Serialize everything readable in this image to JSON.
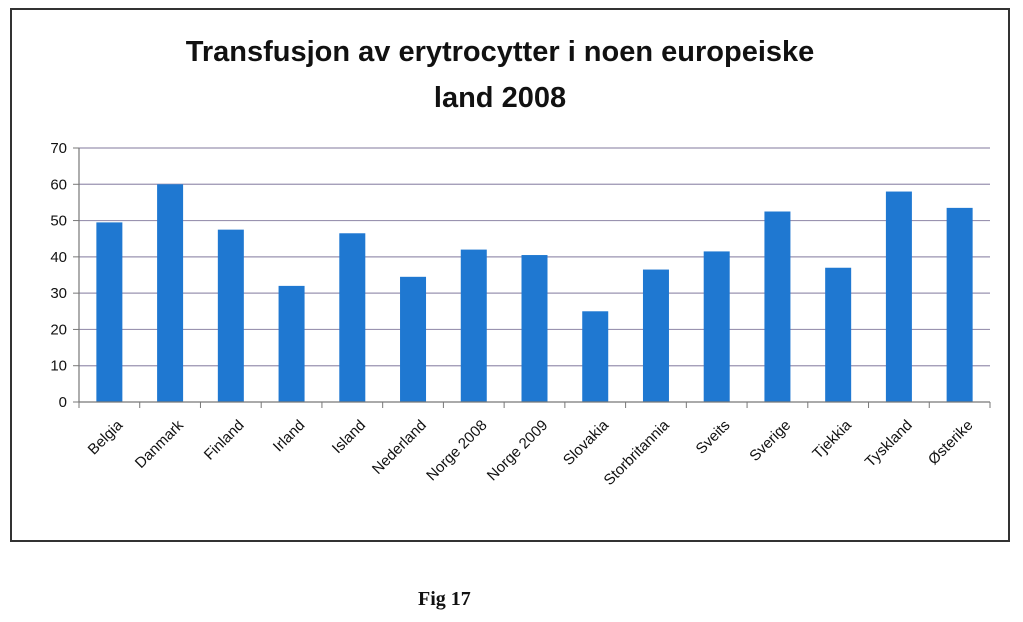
{
  "caption": "Fig 17",
  "chart_data": {
    "type": "bar",
    "title": "Transfusjon av erytrocytter i noen europeiske land 2008",
    "title_lines": [
      "Transfusjon av erytrocytter i noen europeiske",
      "land 2008"
    ],
    "xlabel": "",
    "ylabel": "",
    "ylim": [
      0,
      70
    ],
    "yticks": [
      0,
      10,
      20,
      30,
      40,
      50,
      60,
      70
    ],
    "grid": true,
    "legend": "none",
    "bar_color": "#1f78d1",
    "grid_color": "#9a93b0",
    "categories": [
      "Belgia",
      "Danmark",
      "Finland",
      "Irland",
      "Island",
      "Nederland",
      "Norge 2008",
      "Norge 2009",
      "Slovakia",
      "Storbritannia",
      "Sveits",
      "Sverige",
      "Tjekkia",
      "Tyskland",
      "Østerike"
    ],
    "values": [
      49.5,
      60,
      47.5,
      32,
      46.5,
      34.5,
      42,
      40.5,
      25,
      36.5,
      41.5,
      52.5,
      37,
      58,
      53.5
    ]
  }
}
